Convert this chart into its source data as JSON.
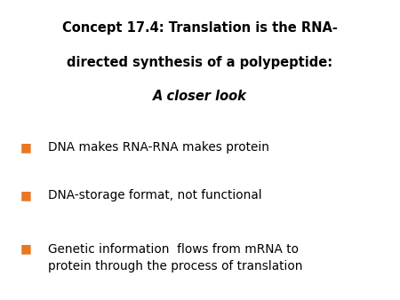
{
  "title_line1": "Concept 17.4: Translation is the RNA-",
  "title_line2": "directed synthesis of a polypeptide:",
  "title_line3": "A closer look",
  "bullet_color": "#E87722",
  "text_color": "#000000",
  "background_color": "#ffffff",
  "bullets": [
    "DNA makes RNA-RNA makes protein",
    "DNA-storage format, not functional",
    "Genetic information  flows from mRNA to\nprotein through the process of translation"
  ],
  "title_fontsize": 10.5,
  "bullet_fontsize": 9.8,
  "bullet_symbol": "■"
}
